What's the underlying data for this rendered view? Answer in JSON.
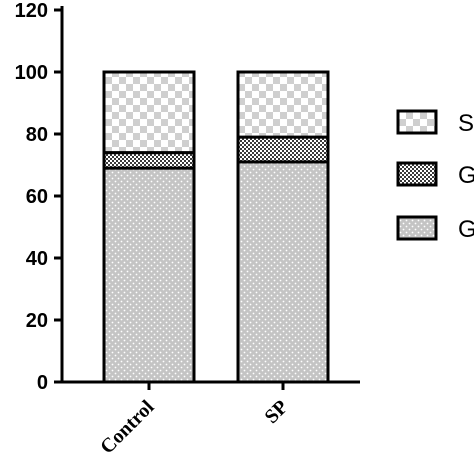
{
  "chart_data": {
    "type": "bar",
    "stacked": true,
    "categories": [
      "Control",
      "SP"
    ],
    "series": [
      {
        "name": "G",
        "pattern": "dots",
        "values": [
          69,
          71
        ]
      },
      {
        "name": "G",
        "pattern": "dense-checker",
        "values": [
          5,
          8
        ]
      },
      {
        "name": "S",
        "pattern": "checker",
        "values": [
          26,
          21
        ]
      }
    ],
    "ylim": [
      0,
      120
    ],
    "yticks": [
      0,
      20,
      40,
      60,
      80,
      100,
      120
    ],
    "legend_position": "right",
    "legend_order": [
      2,
      1,
      0
    ],
    "colors": {
      "fill": "#c8c8c8",
      "pattern": "#ffffff",
      "stroke": "#000000"
    }
  }
}
